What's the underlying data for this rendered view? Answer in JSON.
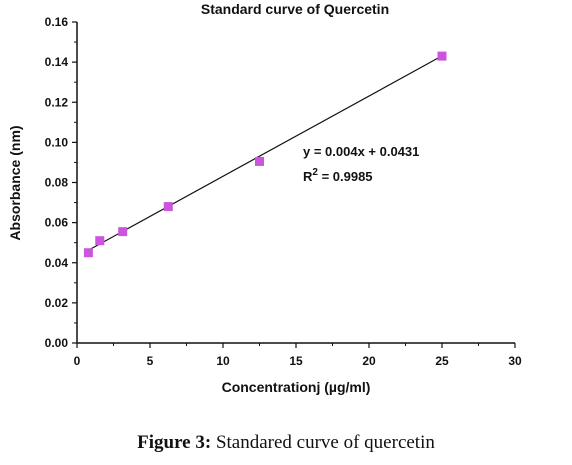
{
  "chart_data": {
    "type": "scatter",
    "title": "Standard curve of Quercetin",
    "xlabel": "Concentrationj (µg/ml)",
    "ylabel": "Absorbance (nm)",
    "xlim": [
      0,
      30
    ],
    "ylim": [
      0,
      0.16
    ],
    "x_ticks": [
      "0",
      "5",
      "10",
      "15",
      "20",
      "25",
      "30"
    ],
    "y_ticks": [
      "0.00",
      "0.02",
      "0.04",
      "0.06",
      "0.08",
      "0.10",
      "0.12",
      "0.14",
      "0.16"
    ],
    "grid": false,
    "series": [
      {
        "points": [
          {
            "x": 0.78,
            "y": 0.045
          },
          {
            "x": 1.56,
            "y": 0.051
          },
          {
            "x": 3.13,
            "y": 0.0555
          },
          {
            "x": 6.25,
            "y": 0.068
          },
          {
            "x": 12.5,
            "y": 0.0905
          },
          {
            "x": 25,
            "y": 0.143
          }
        ],
        "marker": "square",
        "color": "#cc55dd"
      }
    ],
    "trendline": {
      "slope": 0.004,
      "intercept": 0.0431,
      "from_x": 0.78,
      "to_x": 25,
      "color": "#111111"
    },
    "annotations": {
      "equation": "y = 0.004x + 0.0431",
      "r2_label": "R",
      "r2_exponent": "2",
      "r2_value": " = 0.9985"
    }
  },
  "caption": {
    "label": "Figure 3:",
    "text": " Standared curve of quercetin"
  }
}
